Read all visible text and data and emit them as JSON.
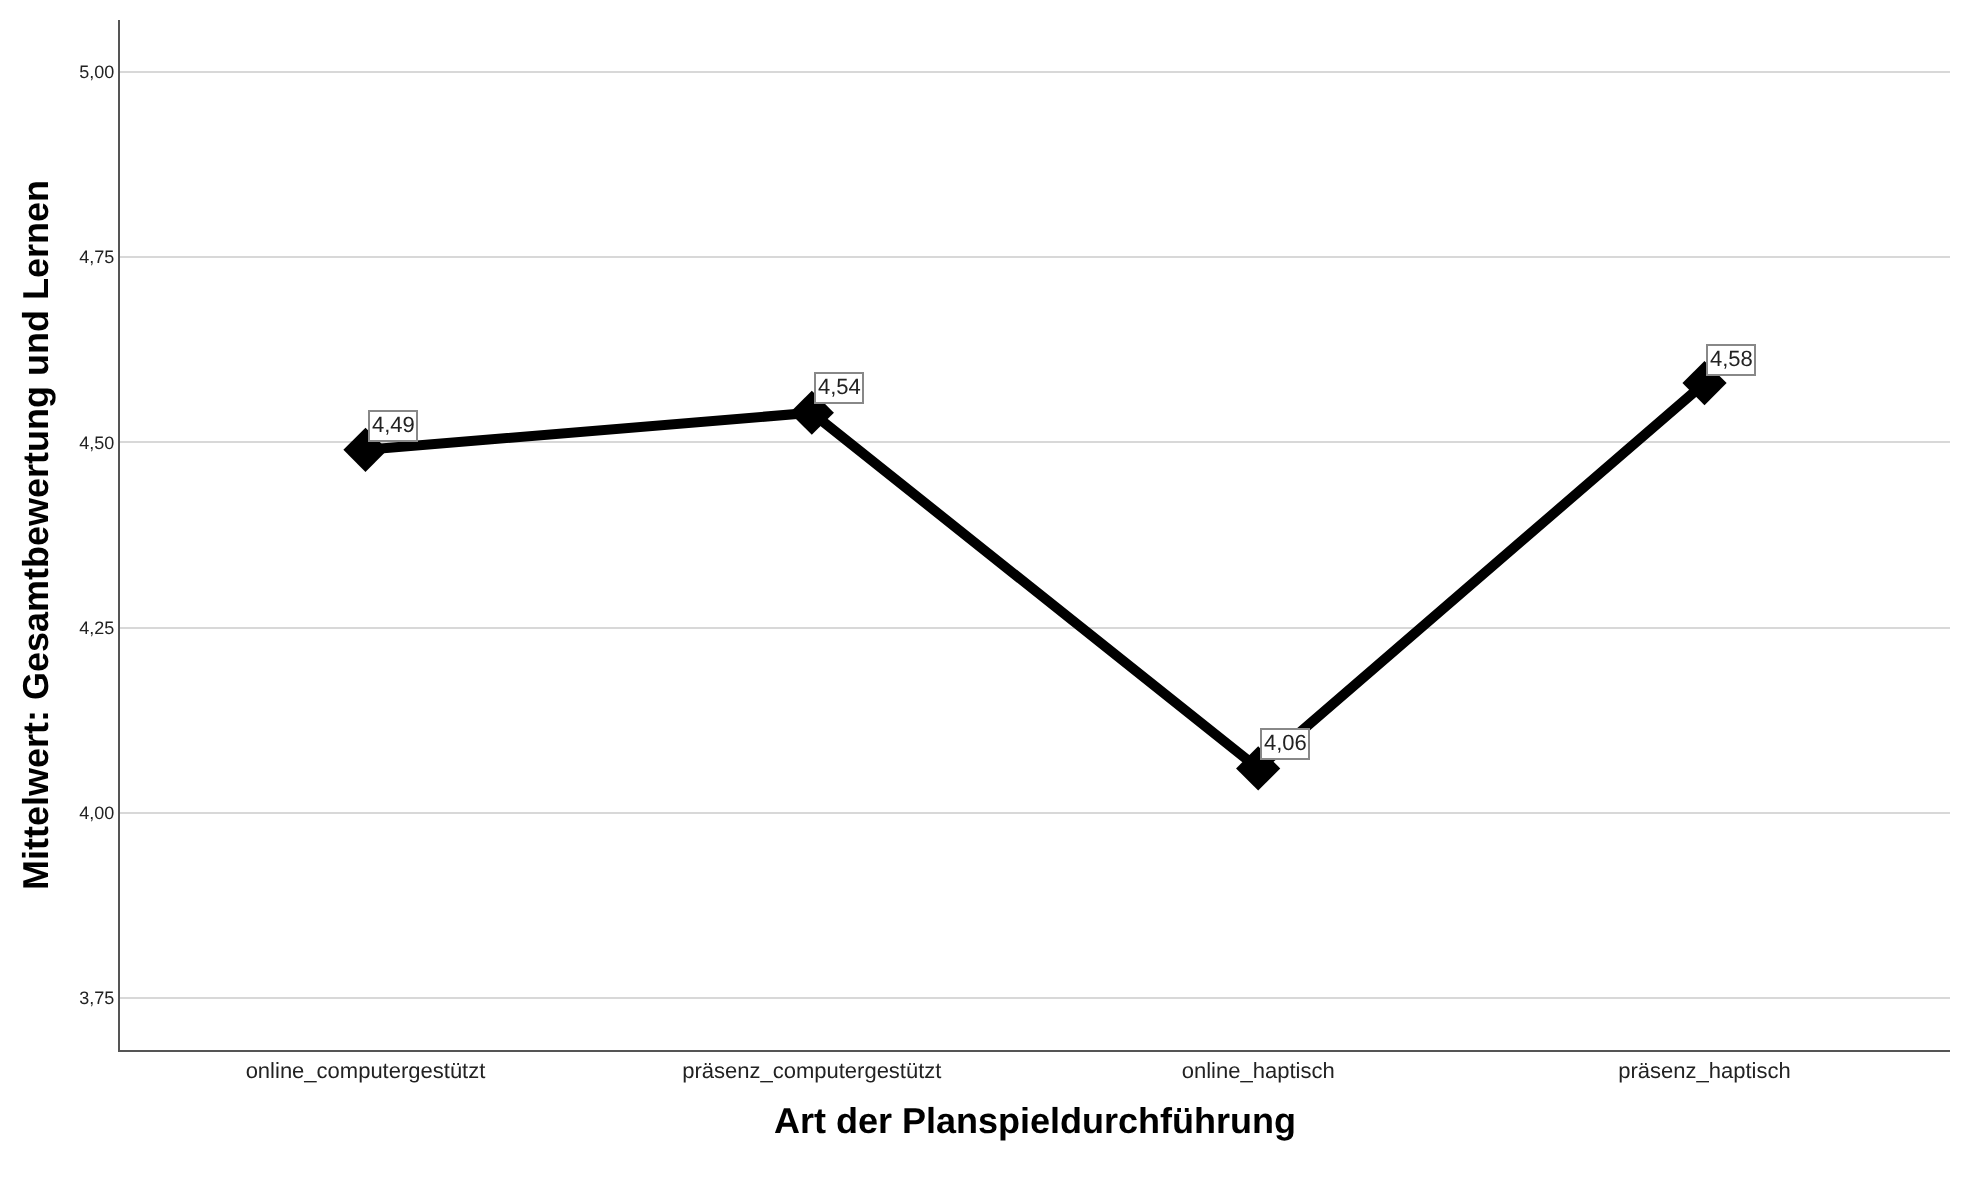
{
  "chart_data": {
    "type": "line",
    "xlabel": "Art der Planspieldurchführung",
    "ylabel": "Mittelwert: Gesamtbewertung und Lernen",
    "categories": [
      "online_computergestützt",
      "präsenz_computergestützt",
      "online_haptisch",
      "präsenz_haptisch"
    ],
    "series": [
      {
        "color": "#000000",
        "values": [
          4.49,
          4.54,
          4.06,
          4.58
        ],
        "value_labels": [
          "4,49",
          "4,54",
          "4,06",
          "4,58"
        ]
      }
    ],
    "ylim": [
      3.68,
      5.07
    ],
    "yticks": [
      {
        "value": 3.75,
        "label": "3,75"
      },
      {
        "value": 4,
        "label": "4,00"
      },
      {
        "value": 4.25,
        "label": "4,25"
      },
      {
        "value": 4.5,
        "label": "4,50"
      },
      {
        "value": 4.75,
        "label": "4,75"
      },
      {
        "value": 5,
        "label": "5,00"
      }
    ],
    "grid": "y",
    "marker": "diamond",
    "line_style": "solid"
  }
}
